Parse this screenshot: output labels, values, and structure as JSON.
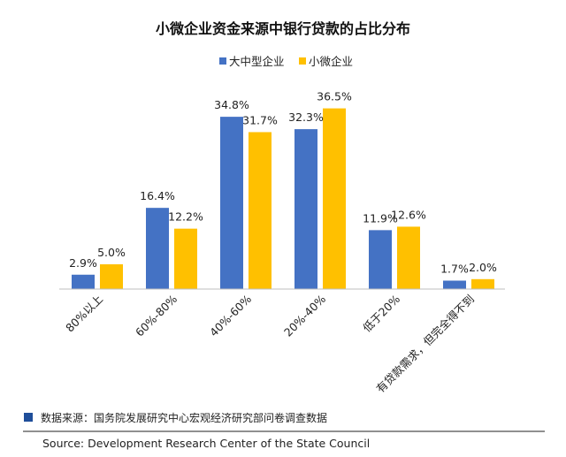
{
  "chart_data": {
    "type": "bar",
    "title": "小微企业资金来源中银行贷款的占比分布",
    "categories": [
      "80%以上",
      "60%-80%",
      "40%-60%",
      "20%-40%",
      "低于20%",
      "有贷款需求，但完全得不到"
    ],
    "series": [
      {
        "name": "大中型企业",
        "color": "#4472C4",
        "values": [
          2.9,
          16.4,
          34.8,
          32.3,
          11.9,
          1.7
        ],
        "labels": [
          "2.9%",
          "16.4%",
          "34.8%",
          "32.3%",
          "11.9%",
          "1.7%"
        ]
      },
      {
        "name": "小微企业",
        "color": "#FFC000",
        "values": [
          5.0,
          12.2,
          31.7,
          36.5,
          12.6,
          2.0
        ],
        "labels": [
          "5.0%",
          "12.2%",
          "31.7%",
          "36.5%",
          "12.6%",
          "2.0%"
        ]
      }
    ],
    "ylim": [
      0,
      40
    ],
    "grid": false,
    "legend_position": "top-center"
  },
  "footer": {
    "source_cn": "数据来源：国务院发展研究中心宏观经济研究部问卷调查数据",
    "source_en": "Source: Development Research Center of the State Council",
    "marker_color": "#1F4E9A"
  }
}
